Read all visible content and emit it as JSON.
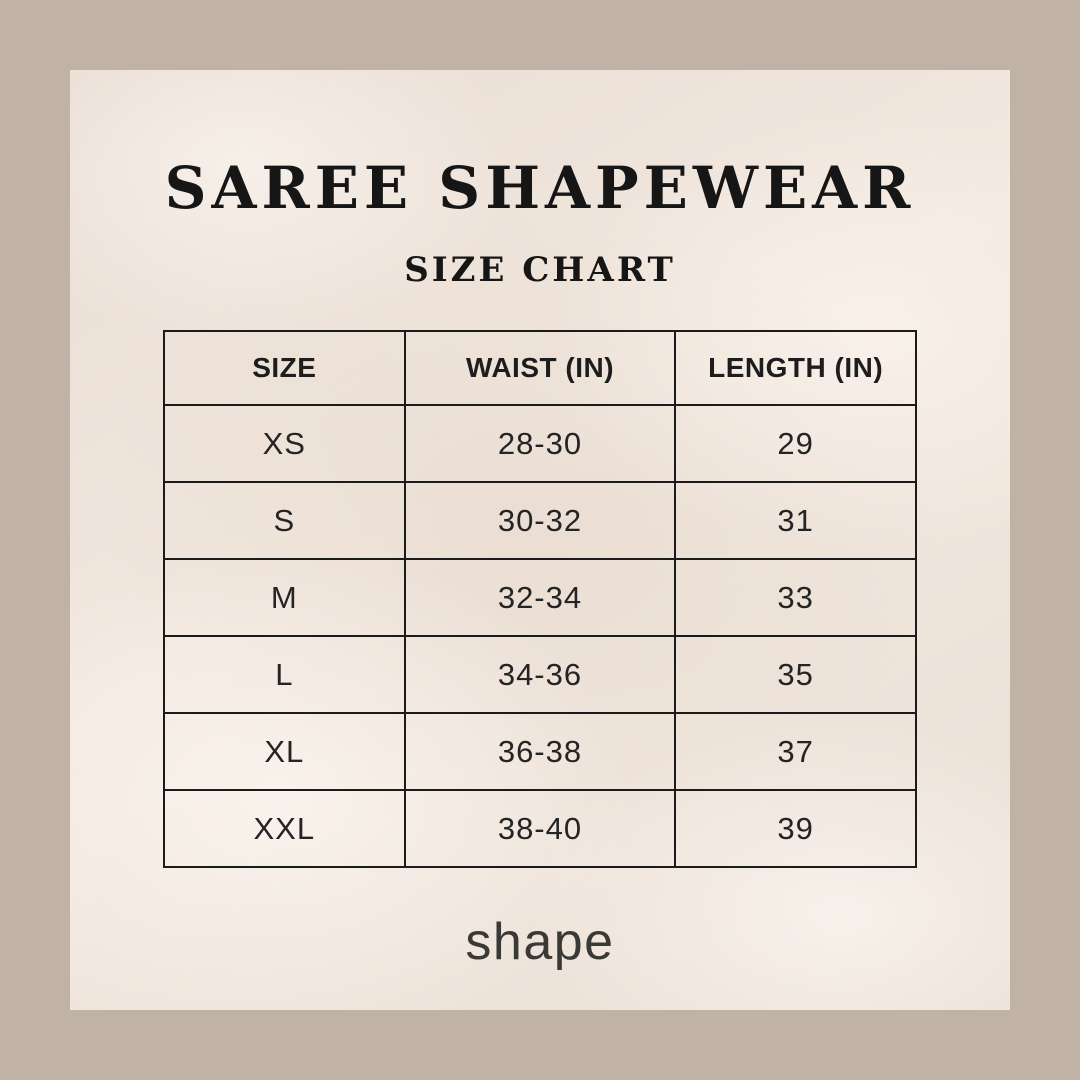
{
  "page": {
    "title": "SAREE SHAPEWEAR",
    "subtitle": "SIZE CHART",
    "brand": "shape"
  },
  "colors": {
    "frame": "#c1b2a6",
    "panel_base": "#eee3da",
    "panel_highlight": "#f6efe8",
    "text": "#1b1b1b",
    "logo_text": "#3b3936"
  },
  "table": {
    "headers": [
      "SIZE",
      "WAIST (IN)",
      "LENGTH (IN)"
    ],
    "rows": [
      {
        "size": "XS",
        "waist": "28-30",
        "length": "29"
      },
      {
        "size": "S",
        "waist": "30-32",
        "length": "31"
      },
      {
        "size": "M",
        "waist": "32-34",
        "length": "33"
      },
      {
        "size": "L",
        "waist": "34-36",
        "length": "35"
      },
      {
        "size": "XL",
        "waist": "36-38",
        "length": "37"
      },
      {
        "size": "XXL",
        "waist": "38-40",
        "length": "39"
      }
    ]
  },
  "chart_data": {
    "type": "table",
    "title": "SAREE SHAPEWEAR — SIZE CHART",
    "columns": [
      "SIZE",
      "WAIST (IN)",
      "LENGTH (IN)"
    ],
    "rows": [
      [
        "XS",
        "28-30",
        "29"
      ],
      [
        "S",
        "30-32",
        "31"
      ],
      [
        "M",
        "32-34",
        "33"
      ],
      [
        "L",
        "34-36",
        "35"
      ],
      [
        "XL",
        "36-38",
        "37"
      ],
      [
        "XXL",
        "38-40",
        "39"
      ]
    ]
  }
}
